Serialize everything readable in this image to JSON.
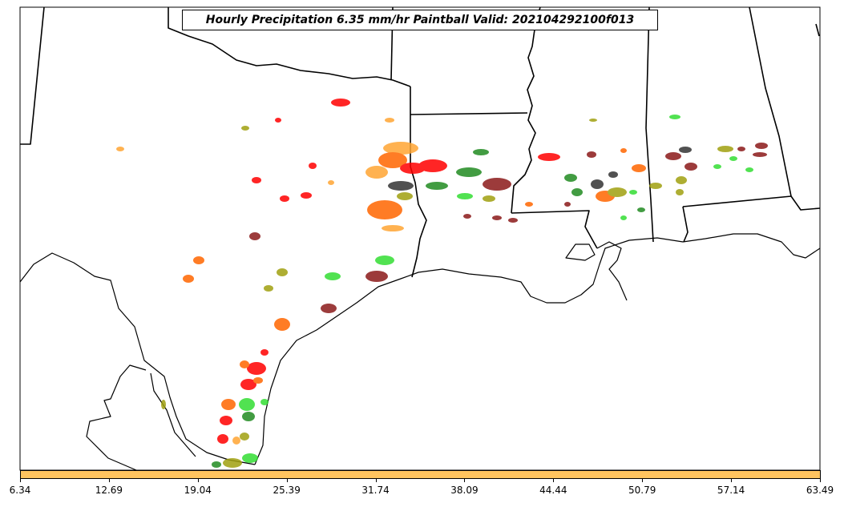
{
  "title": "Hourly Precipitation 6.35 mm/hr Paintball Valid: 202104292100f013",
  "colorbar": {
    "color": "#ffc45f",
    "ticks": [
      "6.34",
      "12.69",
      "19.04",
      "25.39",
      "31.74",
      "38.09",
      "44.44",
      "50.79",
      "57.14",
      "63.49"
    ]
  },
  "member_colors": [
    "#ff0000",
    "#ff6600",
    "#ffa533",
    "#8b1a1a",
    "#a0a010",
    "#228b22",
    "#33dd33",
    "#333333"
  ]
}
